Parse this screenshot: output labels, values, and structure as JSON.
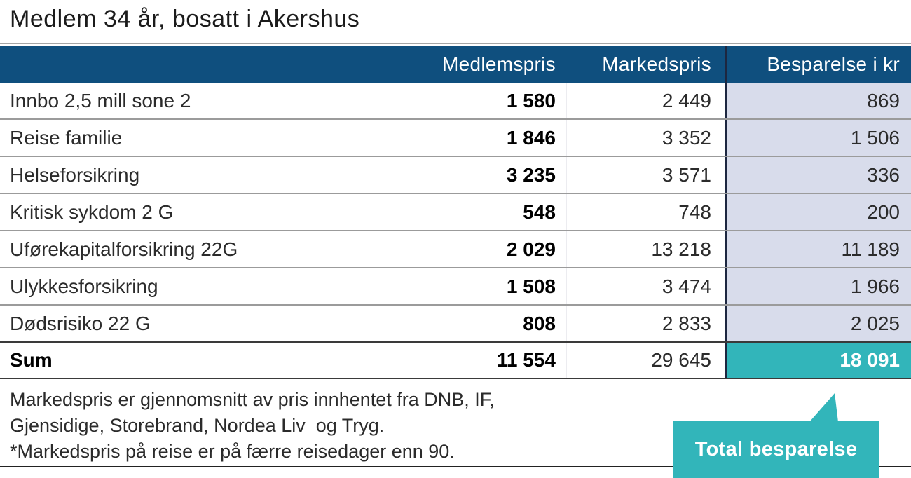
{
  "title": "Medlem 34 år, bosatt i Akershus",
  "colors": {
    "header_bg": "#0F4F7E",
    "savings_column_bg": "#D8DCEB",
    "accent_teal": "#32B5BA",
    "divider_navy": "#1D2740",
    "row_separator": "#9B9B9B"
  },
  "table": {
    "headers": {
      "medlemspris": "Medlemspris",
      "markedspris": "Markedspris",
      "besparelse": "Besparelse i kr"
    },
    "rows": [
      {
        "label": "Innbo 2,5 mill sone 2",
        "medlemspris": "1 580",
        "markedspris": "2 449",
        "besparelse": "869"
      },
      {
        "label": "Reise familie",
        "medlemspris": "1 846",
        "markedspris": "3 352",
        "besparelse": "1 506"
      },
      {
        "label": "Helseforsikring",
        "medlemspris": "3 235",
        "markedspris": "3 571",
        "besparelse": "336"
      },
      {
        "label": "Kritisk sykdom 2 G",
        "medlemspris": "548",
        "markedspris": "748",
        "besparelse": "200"
      },
      {
        "label": "Uførekapitalforsikring 22G",
        "medlemspris": "2 029",
        "markedspris": "13 218",
        "besparelse": "11 189"
      },
      {
        "label": "Ulykkesforsikring",
        "medlemspris": "1 508",
        "markedspris": "3 474",
        "besparelse": "1 966"
      },
      {
        "label": "Dødsrisiko 22 G",
        "medlemspris": "808",
        "markedspris": "2 833",
        "besparelse": "2 025"
      }
    ],
    "sum": {
      "label": "Sum",
      "medlemspris": "11 554",
      "markedspris": "29 645",
      "besparelse": "18 091"
    }
  },
  "notes": {
    "line1": "Markedspris er gjennomsnitt av pris innhentet fra DNB, IF,",
    "line2": "Gjensidige, Storebrand, Nordea Liv  og Tryg.",
    "line3": "*Markedspris på reise er på færre reisedager enn 90."
  },
  "callout": {
    "label": "Total besparelse"
  },
  "chart_data": {
    "type": "table",
    "title": "Medlem 34 år, bosatt i Akershus",
    "columns": [
      "Medlemspris",
      "Markedspris",
      "Besparelse i kr"
    ],
    "categories": [
      "Innbo 2,5 mill sone 2",
      "Reise familie",
      "Helseforsikring",
      "Kritisk sykdom 2 G",
      "Uførekapitalforsikring 22G",
      "Ulykkesforsikring",
      "Dødsrisiko 22 G",
      "Sum"
    ],
    "series": [
      {
        "name": "Medlemspris",
        "values": [
          1580,
          1846,
          3235,
          548,
          2029,
          1508,
          808,
          11554
        ]
      },
      {
        "name": "Markedspris",
        "values": [
          2449,
          3352,
          3571,
          748,
          13218,
          3474,
          2833,
          29645
        ]
      },
      {
        "name": "Besparelse i kr",
        "values": [
          869,
          1506,
          336,
          200,
          11189,
          1966,
          2025,
          18091
        ]
      }
    ]
  }
}
